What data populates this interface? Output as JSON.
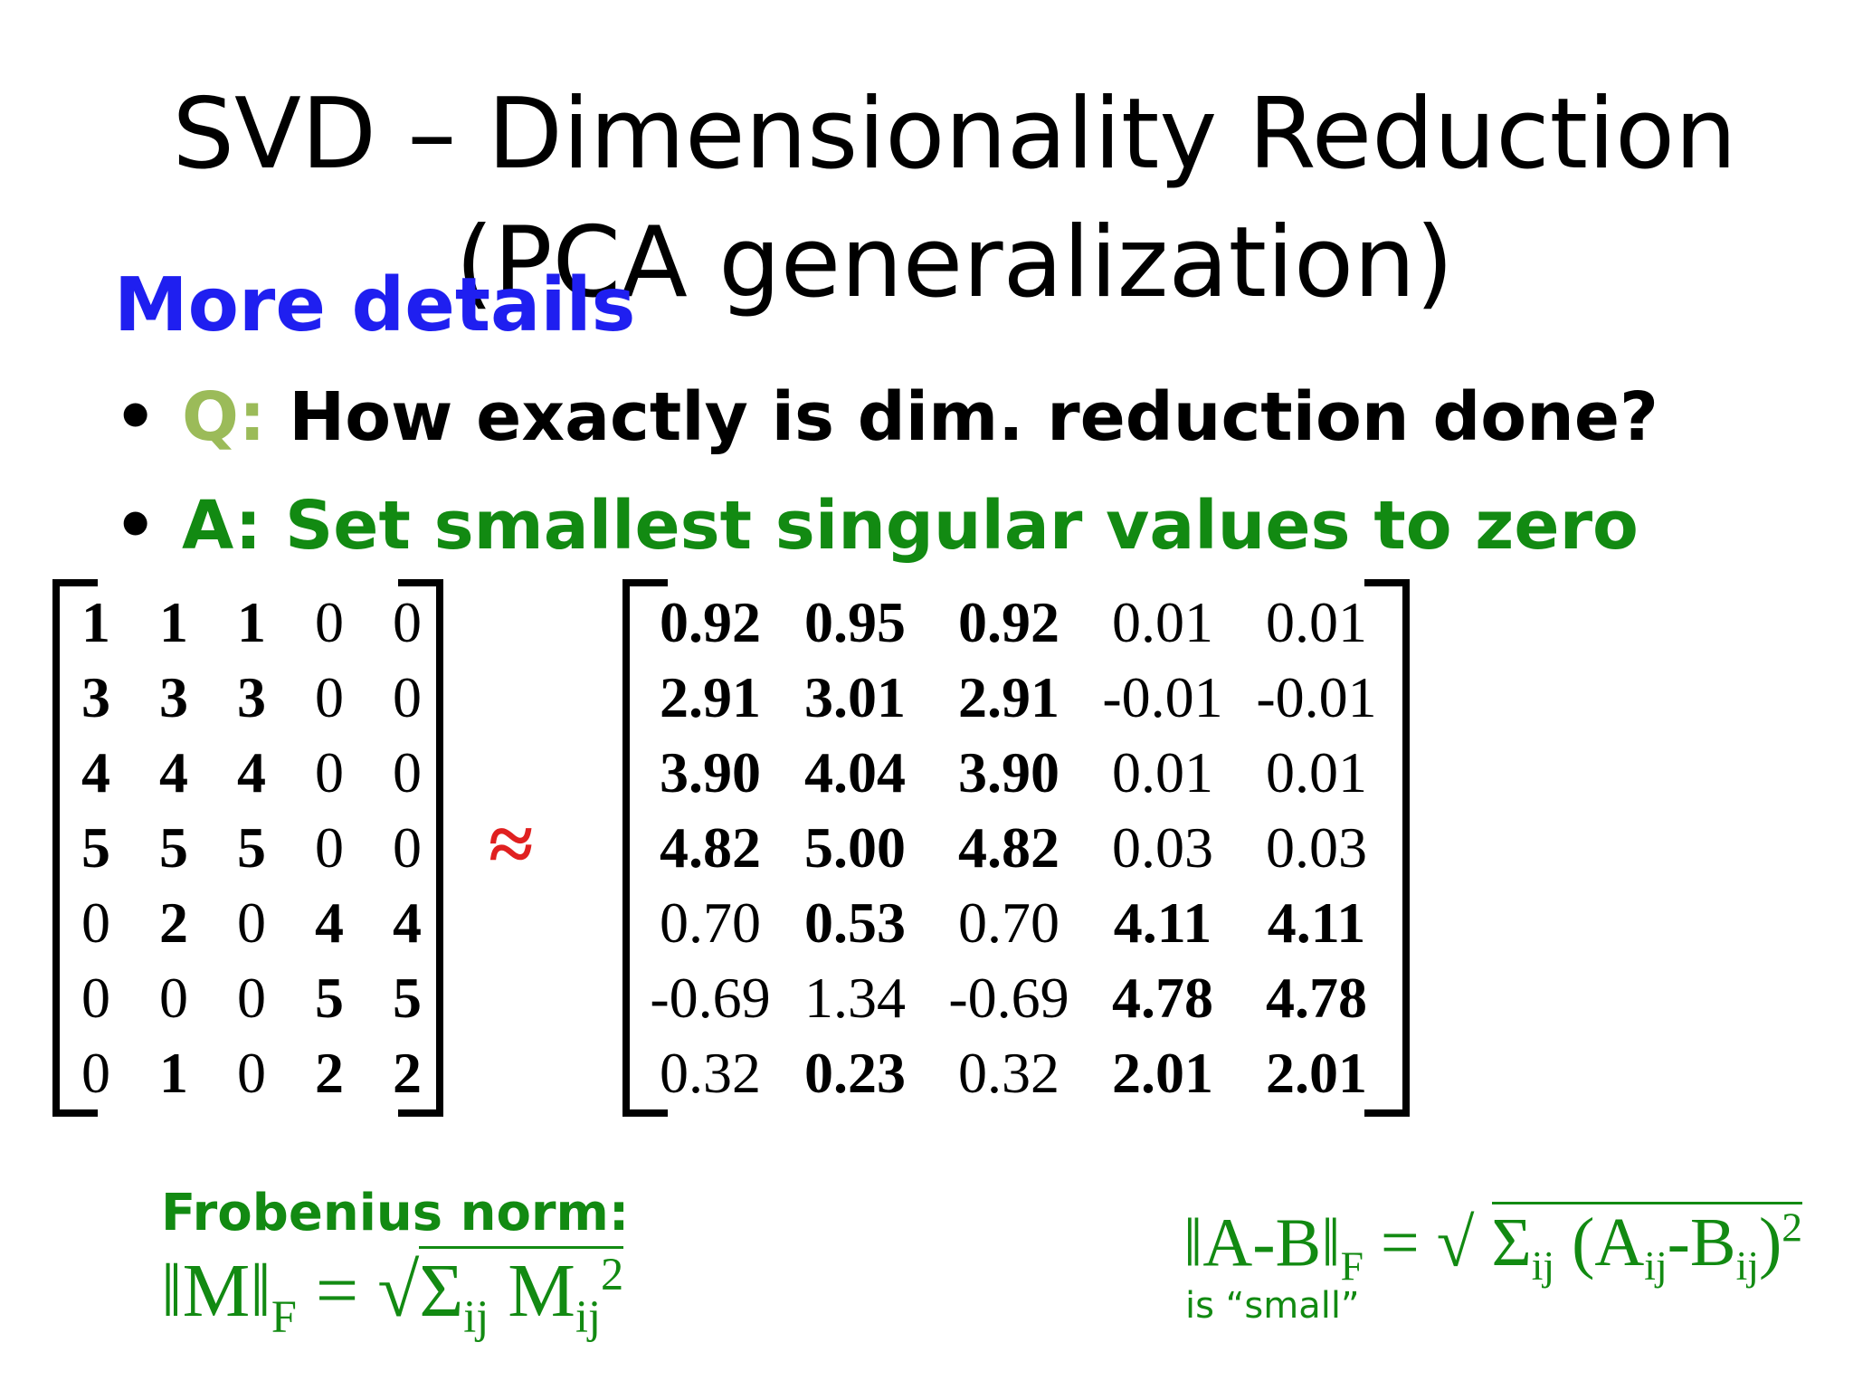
{
  "slide": {
    "title": "SVD – Dimensionality Reduction (PCA generalization)",
    "subheading": "More details",
    "bullets": [
      {
        "label": "Q:",
        "text": " How exactly is dim. reduction done?"
      },
      {
        "text": "A: Set smallest singular values to zero"
      }
    ],
    "approx_symbol": "≈"
  },
  "matrix_a": {
    "rows": [
      [
        "1",
        "1",
        "1",
        "0",
        "0"
      ],
      [
        "3",
        "3",
        "3",
        "0",
        "0"
      ],
      [
        "4",
        "4",
        "4",
        "0",
        "0"
      ],
      [
        "5",
        "5",
        "5",
        "0",
        "0"
      ],
      [
        "0",
        "2",
        "0",
        "4",
        "4"
      ],
      [
        "0",
        "0",
        "0",
        "5",
        "5"
      ],
      [
        "0",
        "1",
        "0",
        "2",
        "2"
      ]
    ],
    "bold": [
      [
        1,
        1,
        1,
        0,
        0
      ],
      [
        1,
        1,
        1,
        0,
        0
      ],
      [
        1,
        1,
        1,
        0,
        0
      ],
      [
        1,
        1,
        1,
        0,
        0
      ],
      [
        0,
        1,
        0,
        1,
        1
      ],
      [
        0,
        0,
        0,
        1,
        1
      ],
      [
        0,
        1,
        0,
        1,
        1
      ]
    ]
  },
  "matrix_b": {
    "rows": [
      [
        "0.92",
        "0.95",
        "0.92",
        "0.01",
        "0.01"
      ],
      [
        "2.91",
        "3.01",
        "2.91",
        "-0.01",
        "-0.01"
      ],
      [
        "3.90",
        "4.04",
        "3.90",
        "0.01",
        "0.01"
      ],
      [
        "4.82",
        "5.00",
        "4.82",
        "0.03",
        "0.03"
      ],
      [
        "0.70",
        "0.53",
        "0.70",
        "4.11",
        "4.11"
      ],
      [
        "-0.69",
        "1.34",
        "-0.69",
        "4.78",
        "4.78"
      ],
      [
        "0.32",
        "0.23",
        "0.32",
        "2.01",
        "2.01"
      ]
    ],
    "bold": [
      [
        1,
        1,
        1,
        0,
        0
      ],
      [
        1,
        1,
        1,
        0,
        0
      ],
      [
        1,
        1,
        1,
        0,
        0
      ],
      [
        1,
        1,
        1,
        0,
        0
      ],
      [
        0,
        1,
        0,
        1,
        1
      ],
      [
        0,
        0,
        0,
        1,
        1
      ],
      [
        0,
        1,
        0,
        1,
        1
      ]
    ]
  },
  "formulas": {
    "frobenius_label": "Frobenius norm:",
    "frob_lhs": "‖M‖",
    "frob_sub_f": "F",
    "frob_eq": " = √",
    "frob_sigma": "Σ",
    "frob_ij": "ij",
    "frob_m": " M",
    "frob_m_sub": "ij",
    "frob_sq": "2",
    "diff_lhs": "‖A-B‖",
    "diff_sub_f": "F",
    "diff_eq": " = √ ",
    "diff_sigma": "Σ",
    "diff_ij": "ij",
    "diff_open": " (A",
    "diff_a_sub": "ij",
    "diff_minus": "-B",
    "diff_b_sub": "ij",
    "diff_close": ")",
    "diff_sq": "2",
    "small_note": "is “small”"
  },
  "colors": {
    "subheading": "#1f1ff0",
    "q_label": "#9bbb59",
    "answer": "#128a12",
    "approx": "#e02020"
  }
}
